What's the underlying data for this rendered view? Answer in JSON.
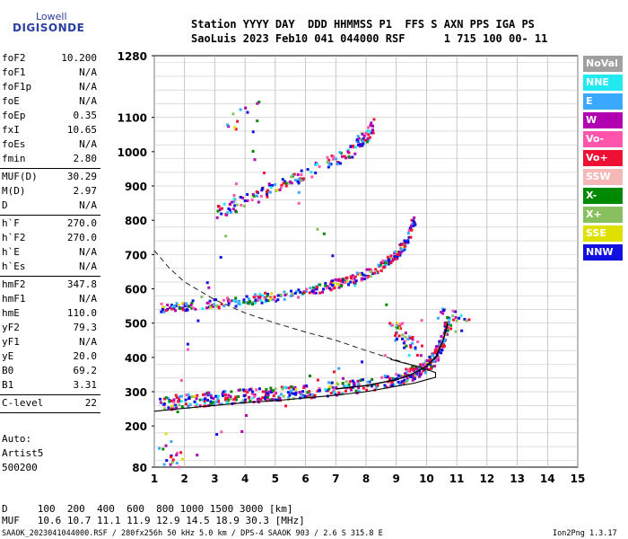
{
  "logo": {
    "line1": "Lowell",
    "line2": "DIGISONDE"
  },
  "header": {
    "line1": "Station YYYY DAY  DDD HHMMSS P1  FFS S AXN PPS IGA PS",
    "line2": "SaoLuis 2023 Feb10 041 044000 RSF      1 715 100 00- 11"
  },
  "params": [
    {
      "k": "foF2",
      "v": "10.200"
    },
    {
      "k": "foF1",
      "v": "N/A"
    },
    {
      "k": "foF1p",
      "v": "N/A"
    },
    {
      "k": "foE",
      "v": "N/A"
    },
    {
      "k": "foEp",
      "v": "0.35"
    },
    {
      "k": "fxI",
      "v": "10.65"
    },
    {
      "k": "foEs",
      "v": "N/A"
    },
    {
      "k": "fmin",
      "v": "2.80"
    },
    {
      "k": "MUF(D)",
      "v": "30.29"
    },
    {
      "k": "M(D)",
      "v": "2.97"
    },
    {
      "k": "D",
      "v": "N/A"
    },
    {
      "k": "h`F",
      "v": "270.0"
    },
    {
      "k": "h`F2",
      "v": "270.0"
    },
    {
      "k": "h`E",
      "v": "N/A"
    },
    {
      "k": "h`Es",
      "v": "N/A"
    },
    {
      "k": "hmF2",
      "v": "347.8"
    },
    {
      "k": "hmF1",
      "v": "N/A"
    },
    {
      "k": "hmE",
      "v": "110.0"
    },
    {
      "k": "yF2",
      "v": "79.3"
    },
    {
      "k": "yF1",
      "v": "N/A"
    },
    {
      "k": "yE",
      "v": "20.0"
    },
    {
      "k": "B0",
      "v": "69.2"
    },
    {
      "k": "B1",
      "v": "3.31"
    },
    {
      "k": "C-level",
      "v": "22"
    }
  ],
  "auto": {
    "line1": "Auto:",
    "line2": "Artist5",
    "line3": "500200"
  },
  "legend": [
    {
      "label": "NoVal",
      "color": "#a0a0a0"
    },
    {
      "label": "NNE",
      "color": "#22e8f0"
    },
    {
      "label": "E",
      "color": "#3aa8ff"
    },
    {
      "label": "W",
      "color": "#b000b0"
    },
    {
      "label": "Vo-",
      "color": "#ff55aa"
    },
    {
      "label": "Vo+",
      "color": "#ee1133"
    },
    {
      "label": "SSW",
      "color": "#f5b8b8"
    },
    {
      "label": "X-",
      "color": "#008800"
    },
    {
      "label": "X+",
      "color": "#88c060"
    },
    {
      "label": "SSE",
      "color": "#e0e000"
    },
    {
      "label": "NNW",
      "color": "#1010e0"
    }
  ],
  "bottom": {
    "d_line": "D     100  200  400  600  800 1000 1500 3000 [km]",
    "muf_line": "MUF   10.6 10.7 11.1 11.9 12.9 14.5 18.9 30.3 [MHz]",
    "footer_left": "SAAOK_2023041044000.RSF / 280fx256h 50 kHz 5.0 km / DPS-4 SAAOK 903 / 2.6 S 315.8 E",
    "footer_right": "Ion2Png 1.3.17"
  },
  "chart_data": {
    "type": "scatter",
    "xlim": [
      1,
      15
    ],
    "ylim": [
      80,
      1280
    ],
    "x_ticks": [
      "1",
      "2",
      "3",
      "4",
      "5",
      "6",
      "7",
      "8",
      "9",
      "10",
      "11",
      "12",
      "13",
      "14",
      "15"
    ],
    "y_ticks": [
      "80",
      "200",
      "300",
      "400",
      "500",
      "600",
      "700",
      "800",
      "900",
      "1000",
      "1100",
      "1280"
    ],
    "grid": true,
    "x_unit": "MHz",
    "y_unit": "km",
    "traces": {
      "o_trace": [
        [
          1.2,
          265
        ],
        [
          2,
          272
        ],
        [
          3,
          280
        ],
        [
          4,
          287
        ],
        [
          5,
          293
        ],
        [
          6,
          300
        ],
        [
          7,
          308
        ],
        [
          8,
          318
        ],
        [
          9,
          335
        ],
        [
          9.5,
          350
        ],
        [
          10,
          375
        ],
        [
          10.3,
          400
        ],
        [
          10.55,
          450
        ],
        [
          10.7,
          500
        ]
      ],
      "second_hop": [
        [
          1.2,
          545
        ],
        [
          2,
          550
        ],
        [
          3,
          557
        ],
        [
          4,
          566
        ],
        [
          5,
          577
        ],
        [
          6,
          592
        ],
        [
          7,
          612
        ],
        [
          7.8,
          635
        ],
        [
          8.5,
          665
        ],
        [
          9,
          698
        ],
        [
          9.3,
          730
        ],
        [
          9.6,
          800
        ]
      ],
      "third_hop": [
        [
          3,
          820
        ],
        [
          4,
          855
        ],
        [
          5,
          895
        ],
        [
          6,
          935
        ],
        [
          7,
          975
        ],
        [
          7.6,
          1010
        ],
        [
          8,
          1045
        ],
        [
          8.3,
          1080
        ]
      ],
      "clusters": [
        [
          8.9,
          480
        ],
        [
          9.2,
          460
        ],
        [
          9.7,
          420
        ],
        [
          3.5,
          1090
        ],
        [
          4.5,
          1120
        ],
        [
          1.3,
          120
        ],
        [
          1.8,
          100
        ],
        [
          10.5,
          520
        ],
        [
          11.3,
          500
        ]
      ],
      "dashed_profile": [
        [
          1,
          712
        ],
        [
          1.5,
          660
        ],
        [
          2,
          620
        ],
        [
          3,
          568
        ],
        [
          4,
          530
        ],
        [
          5,
          500
        ],
        [
          6,
          474
        ],
        [
          7,
          450
        ],
        [
          8,
          420
        ],
        [
          9,
          392
        ],
        [
          9.5,
          378
        ],
        [
          10,
          360
        ]
      ],
      "solid_profile": [
        [
          1,
          243
        ],
        [
          2,
          252
        ],
        [
          3,
          260
        ],
        [
          4,
          268
        ],
        [
          5,
          274
        ],
        [
          6,
          282
        ],
        [
          7,
          290
        ],
        [
          8,
          300
        ],
        [
          9,
          316
        ],
        [
          9.6,
          325
        ],
        [
          10,
          335
        ],
        [
          10.3,
          342
        ],
        [
          10.3,
          356
        ],
        [
          9.8,
          372
        ],
        [
          9.2,
          385
        ],
        [
          8.8,
          395
        ]
      ]
    }
  }
}
